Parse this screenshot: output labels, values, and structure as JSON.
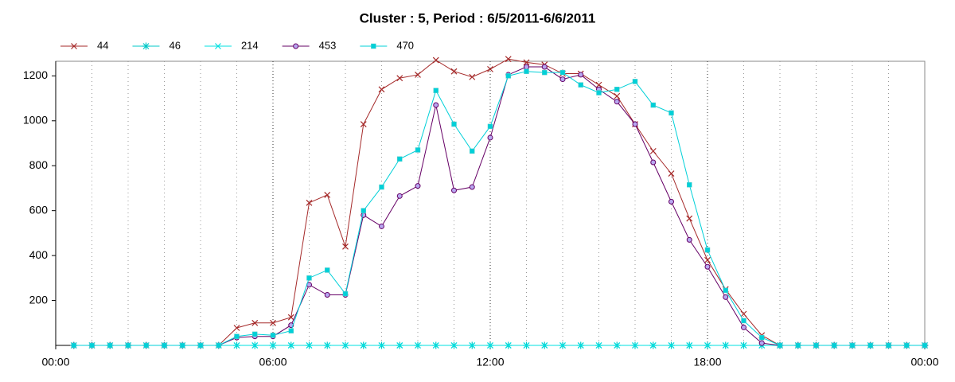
{
  "chart_data": {
    "type": "line",
    "title": "Cluster : 5, Period : 6/5/2011-6/6/2011",
    "x": [
      0.5,
      1,
      1.5,
      2,
      2.5,
      3,
      3.5,
      4,
      4.5,
      5,
      5.5,
      6,
      6.5,
      7,
      7.5,
      8,
      8.5,
      9,
      9.5,
      10,
      10.5,
      11,
      11.5,
      12,
      12.5,
      13,
      13.5,
      14,
      14.5,
      15,
      15.5,
      16,
      16.5,
      17,
      17.5,
      18,
      18.5,
      19,
      19.5,
      20,
      20.5,
      21,
      21.5,
      22,
      22.5,
      23,
      23.5,
      24
    ],
    "series": [
      {
        "name": "44",
        "color": "#a52a2a",
        "marker": "x",
        "values": [
          0,
          0,
          0,
          0,
          0,
          0,
          0,
          0,
          0,
          78,
          100,
          100,
          125,
          635,
          670,
          440,
          985,
          1140,
          1190,
          1205,
          1270,
          1220,
          1195,
          1230,
          1275,
          1260,
          1250,
          1210,
          1210,
          1160,
          1110,
          985,
          865,
          765,
          565,
          380,
          250,
          140,
          45,
          0,
          0,
          0,
          0,
          0,
          0,
          0,
          0,
          0
        ]
      },
      {
        "name": "46",
        "color": "#00c8c8",
        "marker": "star",
        "values": [
          0,
          0,
          0,
          0,
          0,
          0,
          0,
          0,
          0,
          0,
          0,
          0,
          0,
          0,
          0,
          0,
          0,
          0,
          0,
          0,
          0,
          0,
          0,
          0,
          0,
          0,
          0,
          0,
          0,
          0,
          0,
          0,
          0,
          0,
          0,
          0,
          0,
          0,
          0,
          0,
          0,
          0,
          0,
          0,
          0,
          0,
          0,
          0
        ]
      },
      {
        "name": "214",
        "color": "#00e0e0",
        "marker": "x",
        "values": [
          0,
          0,
          0,
          0,
          0,
          0,
          0,
          0,
          0,
          0,
          0,
          0,
          0,
          0,
          0,
          0,
          0,
          0,
          0,
          0,
          0,
          0,
          0,
          0,
          0,
          0,
          0,
          0,
          0,
          0,
          0,
          0,
          0,
          0,
          0,
          0,
          0,
          0,
          0,
          0,
          0,
          0,
          0,
          0,
          0,
          0,
          0,
          0
        ]
      },
      {
        "name": "453",
        "color": "#660066",
        "marker": "circle",
        "values": [
          0,
          0,
          0,
          0,
          0,
          0,
          0,
          0,
          0,
          35,
          40,
          40,
          90,
          270,
          225,
          225,
          580,
          530,
          665,
          710,
          1070,
          690,
          705,
          925,
          1205,
          1240,
          1240,
          1185,
          1205,
          1140,
          1085,
          985,
          815,
          640,
          470,
          350,
          215,
          80,
          10,
          0,
          0,
          0,
          0,
          0,
          0,
          0,
          0,
          0
        ]
      },
      {
        "name": "470",
        "color": "#00d0d8",
        "marker": "square",
        "values": [
          0,
          0,
          0,
          0,
          0,
          0,
          0,
          0,
          0,
          40,
          50,
          45,
          65,
          300,
          335,
          230,
          600,
          705,
          830,
          870,
          1135,
          985,
          865,
          975,
          1200,
          1220,
          1215,
          1215,
          1160,
          1125,
          1140,
          1175,
          1070,
          1035,
          715,
          425,
          245,
          110,
          35,
          0,
          0,
          0,
          0,
          0,
          0,
          0,
          0,
          0
        ]
      }
    ],
    "xlim": [
      0,
      24
    ],
    "xticks": [
      {
        "value": 0,
        "label": "00:00"
      },
      {
        "value": 6,
        "label": "06:00"
      },
      {
        "value": 12,
        "label": "12:00"
      },
      {
        "value": 18,
        "label": "18:00"
      },
      {
        "value": 24,
        "label": "00:00"
      }
    ],
    "ylim": [
      0,
      1265
    ],
    "yticks": [
      200,
      400,
      600,
      800,
      1000,
      1200
    ],
    "grid": true,
    "legend": "top-left"
  }
}
